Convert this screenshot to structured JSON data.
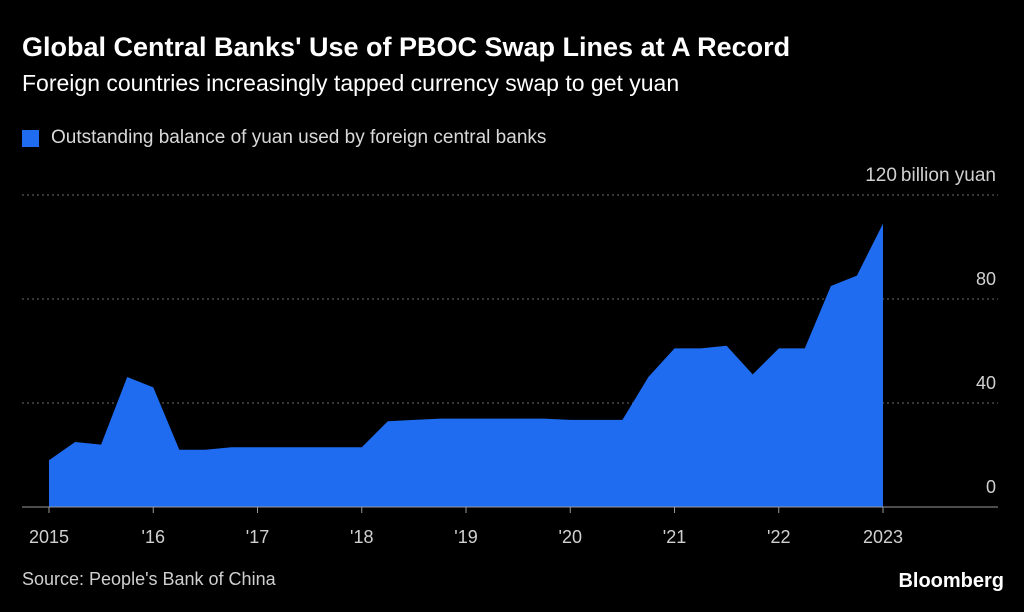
{
  "chart_data": {
    "type": "area",
    "title": "Global Central Banks' Use of PBOC Swap Lines at A Record",
    "subtitle": "Foreign countries increasingly tapped currency swap to get yuan",
    "series": [
      {
        "name": "Outstanding balance of yuan used by foreign central banks",
        "color": "#1f6cf0",
        "points": [
          {
            "x": "2015-01",
            "y": 18
          },
          {
            "x": "2015-04",
            "y": 25
          },
          {
            "x": "2015-07",
            "y": 24
          },
          {
            "x": "2015-10",
            "y": 50
          },
          {
            "x": "2016-01",
            "y": 46
          },
          {
            "x": "2016-04",
            "y": 22
          },
          {
            "x": "2016-07",
            "y": 22
          },
          {
            "x": "2016-10",
            "y": 23
          },
          {
            "x": "2017-01",
            "y": 23
          },
          {
            "x": "2017-04",
            "y": 23
          },
          {
            "x": "2017-07",
            "y": 23
          },
          {
            "x": "2017-10",
            "y": 23
          },
          {
            "x": "2018-01",
            "y": 23
          },
          {
            "x": "2018-04",
            "y": 33
          },
          {
            "x": "2018-07",
            "y": 33.5
          },
          {
            "x": "2018-10",
            "y": 34
          },
          {
            "x": "2019-01",
            "y": 34
          },
          {
            "x": "2019-04",
            "y": 34
          },
          {
            "x": "2019-07",
            "y": 34
          },
          {
            "x": "2019-10",
            "y": 34
          },
          {
            "x": "2020-01",
            "y": 33.5
          },
          {
            "x": "2020-04",
            "y": 33.5
          },
          {
            "x": "2020-07",
            "y": 33.5
          },
          {
            "x": "2020-10",
            "y": 50
          },
          {
            "x": "2021-01",
            "y": 61
          },
          {
            "x": "2021-04",
            "y": 61
          },
          {
            "x": "2021-07",
            "y": 62
          },
          {
            "x": "2021-10",
            "y": 51
          },
          {
            "x": "2022-01",
            "y": 61
          },
          {
            "x": "2022-04",
            "y": 61
          },
          {
            "x": "2022-07",
            "y": 85
          },
          {
            "x": "2022-10",
            "y": 89
          },
          {
            "x": "2023-01",
            "y": 109
          }
        ]
      }
    ],
    "x_ticks": [
      {
        "label": "2015",
        "value": "2015-01"
      },
      {
        "label": "'16",
        "value": "2016-01"
      },
      {
        "label": "'17",
        "value": "2017-01"
      },
      {
        "label": "'18",
        "value": "2018-01"
      },
      {
        "label": "'19",
        "value": "2019-01"
      },
      {
        "label": "'20",
        "value": "2020-01"
      },
      {
        "label": "'21",
        "value": "2021-01"
      },
      {
        "label": "'22",
        "value": "2022-01"
      },
      {
        "label": "2023",
        "value": "2023-01"
      }
    ],
    "x_range": [
      "2015-01",
      "2023-12"
    ],
    "y_ticks": [
      {
        "value": 0,
        "label": "0"
      },
      {
        "value": 40,
        "label": "40"
      },
      {
        "value": 80,
        "label": "80"
      },
      {
        "value": 120,
        "label": "120"
      }
    ],
    "y_unit": "billion yuan",
    "ylim": [
      0,
      120
    ],
    "y_axis_side": "right",
    "grid": true,
    "legend_position": "top-left",
    "colors": {
      "background": "#000000",
      "area": "#1f6cf0",
      "grid": "#6b6b6b",
      "axis": "#9a9a9a",
      "text": "#ffffff"
    }
  },
  "footer": {
    "source": "Source: People's Bank of China",
    "brand": "Bloomberg"
  }
}
